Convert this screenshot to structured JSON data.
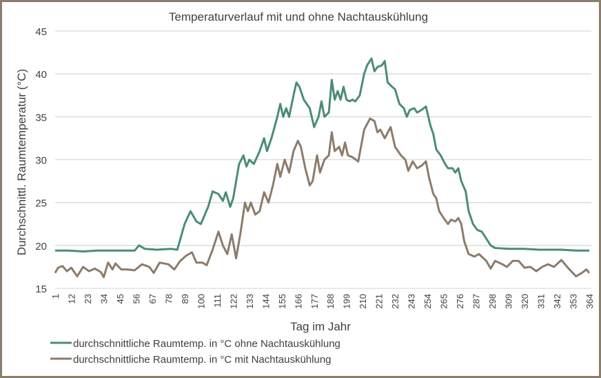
{
  "chart_data": {
    "type": "line",
    "title": "Temperaturverlauf mit und ohne Nachtauskühlung",
    "xlabel": "Tag im Jahr",
    "ylabel": "Durchschnittl. Raumtemperatur (°C)",
    "ylim": [
      15,
      45
    ],
    "yticks": [
      15,
      20,
      25,
      30,
      35,
      40,
      45
    ],
    "xlim": [
      1,
      364
    ],
    "xticks": [
      1,
      12,
      23,
      34,
      45,
      56,
      67,
      78,
      89,
      100,
      111,
      122,
      133,
      144,
      155,
      166,
      177,
      188,
      199,
      210,
      221,
      232,
      243,
      254,
      265,
      276,
      287,
      298,
      309,
      320,
      331,
      342,
      353,
      364
    ],
    "grid": true,
    "legend_position": "bottom-left",
    "series": [
      {
        "name": "durchschnittliche Raumtemp. in °C ohne Nachtauskühlung",
        "color": "#4a8c78",
        "points": [
          [
            1,
            19.4
          ],
          [
            10,
            19.4
          ],
          [
            20,
            19.3
          ],
          [
            30,
            19.4
          ],
          [
            40,
            19.4
          ],
          [
            55,
            19.4
          ],
          [
            58,
            20.0
          ],
          [
            62,
            19.6
          ],
          [
            70,
            19.5
          ],
          [
            80,
            19.6
          ],
          [
            84,
            19.5
          ],
          [
            89,
            22.5
          ],
          [
            93,
            24.0
          ],
          [
            97,
            22.8
          ],
          [
            100,
            22.5
          ],
          [
            105,
            24.5
          ],
          [
            108,
            26.3
          ],
          [
            112,
            26.0
          ],
          [
            115,
            25.2
          ],
          [
            117,
            26.2
          ],
          [
            120,
            24.5
          ],
          [
            122,
            25.5
          ],
          [
            126,
            29.5
          ],
          [
            129,
            30.5
          ],
          [
            131,
            29.2
          ],
          [
            133,
            30.0
          ],
          [
            136,
            29.5
          ],
          [
            140,
            31.0
          ],
          [
            143,
            32.5
          ],
          [
            145,
            31.0
          ],
          [
            148,
            32.5
          ],
          [
            152,
            35.0
          ],
          [
            154,
            36.5
          ],
          [
            156,
            35.0
          ],
          [
            158,
            36.0
          ],
          [
            160,
            35.0
          ],
          [
            163,
            37.5
          ],
          [
            165,
            39.0
          ],
          [
            167,
            38.5
          ],
          [
            170,
            37.0
          ],
          [
            174,
            36.0
          ],
          [
            177,
            33.8
          ],
          [
            180,
            35.0
          ],
          [
            182,
            36.8
          ],
          [
            184,
            35.0
          ],
          [
            187,
            35.5
          ],
          [
            189,
            39.3
          ],
          [
            191,
            37.0
          ],
          [
            193,
            38.0
          ],
          [
            195,
            37.0
          ],
          [
            197,
            38.5
          ],
          [
            199,
            37.0
          ],
          [
            201,
            36.8
          ],
          [
            203,
            37.0
          ],
          [
            205,
            36.8
          ],
          [
            208,
            37.5
          ],
          [
            211,
            40.0
          ],
          [
            213,
            41.0
          ],
          [
            216,
            41.8
          ],
          [
            218,
            40.3
          ],
          [
            220,
            40.8
          ],
          [
            223,
            41.0
          ],
          [
            225,
            41.5
          ],
          [
            227,
            39.0
          ],
          [
            230,
            38.5
          ],
          [
            232,
            38.2
          ],
          [
            235,
            36.5
          ],
          [
            238,
            36.0
          ],
          [
            240,
            35.0
          ],
          [
            242,
            35.8
          ],
          [
            245,
            36.0
          ],
          [
            247,
            35.5
          ],
          [
            250,
            35.8
          ],
          [
            253,
            36.2
          ],
          [
            256,
            34.0
          ],
          [
            258,
            33.0
          ],
          [
            260,
            31.2
          ],
          [
            263,
            30.5
          ],
          [
            266,
            29.5
          ],
          [
            268,
            29.0
          ],
          [
            271,
            29.0
          ],
          [
            273,
            28.5
          ],
          [
            275,
            29.0
          ],
          [
            277,
            27.5
          ],
          [
            280,
            26.3
          ],
          [
            282,
            24.0
          ],
          [
            285,
            22.5
          ],
          [
            288,
            21.8
          ],
          [
            291,
            21.6
          ],
          [
            294,
            20.8
          ],
          [
            297,
            20.0
          ],
          [
            300,
            19.7
          ],
          [
            310,
            19.6
          ],
          [
            320,
            19.6
          ],
          [
            330,
            19.5
          ],
          [
            345,
            19.5
          ],
          [
            355,
            19.4
          ],
          [
            364,
            19.4
          ]
        ]
      },
      {
        "name": "durchschnittliche Raumtemp. in °C mit Nachtauskühlung",
        "color": "#8c7b6b",
        "points": [
          [
            1,
            16.8
          ],
          [
            3,
            17.4
          ],
          [
            6,
            17.6
          ],
          [
            9,
            17.0
          ],
          [
            12,
            17.4
          ],
          [
            16,
            16.4
          ],
          [
            20,
            17.5
          ],
          [
            24,
            17.0
          ],
          [
            28,
            17.3
          ],
          [
            32,
            16.9
          ],
          [
            34,
            16.3
          ],
          [
            37,
            18.0
          ],
          [
            40,
            17.2
          ],
          [
            42,
            17.9
          ],
          [
            46,
            17.2
          ],
          [
            50,
            17.2
          ],
          [
            55,
            17.1
          ],
          [
            60,
            17.8
          ],
          [
            65,
            17.5
          ],
          [
            68,
            16.8
          ],
          [
            72,
            18.0
          ],
          [
            78,
            17.8
          ],
          [
            82,
            17.2
          ],
          [
            86,
            18.2
          ],
          [
            90,
            18.8
          ],
          [
            94,
            19.2
          ],
          [
            97,
            18.0
          ],
          [
            101,
            18.0
          ],
          [
            104,
            17.7
          ],
          [
            108,
            19.5
          ],
          [
            112,
            21.6
          ],
          [
            115,
            20.0
          ],
          [
            118,
            19.0
          ],
          [
            121,
            21.3
          ],
          [
            124,
            18.5
          ],
          [
            127,
            21.5
          ],
          [
            130,
            25.0
          ],
          [
            132,
            24.0
          ],
          [
            134,
            25.0
          ],
          [
            137,
            23.6
          ],
          [
            140,
            24.0
          ],
          [
            143,
            26.2
          ],
          [
            146,
            25.0
          ],
          [
            149,
            27.0
          ],
          [
            152,
            29.5
          ],
          [
            154,
            28.0
          ],
          [
            157,
            30.0
          ],
          [
            160,
            28.5
          ],
          [
            163,
            31.0
          ],
          [
            166,
            32.2
          ],
          [
            168,
            31.5
          ],
          [
            171,
            29.0
          ],
          [
            174,
            27.0
          ],
          [
            176,
            27.5
          ],
          [
            179,
            30.5
          ],
          [
            181,
            28.5
          ],
          [
            184,
            30.0
          ],
          [
            187,
            30.5
          ],
          [
            189,
            33.2
          ],
          [
            191,
            31.0
          ],
          [
            194,
            31.5
          ],
          [
            196,
            30.5
          ],
          [
            198,
            32.0
          ],
          [
            200,
            30.5
          ],
          [
            203,
            30.3
          ],
          [
            207,
            29.8
          ],
          [
            211,
            33.5
          ],
          [
            215,
            34.8
          ],
          [
            218,
            34.5
          ],
          [
            220,
            33.2
          ],
          [
            222,
            33.5
          ],
          [
            225,
            32.5
          ],
          [
            229,
            33.8
          ],
          [
            232,
            31.5
          ],
          [
            236,
            30.5
          ],
          [
            239,
            30.0
          ],
          [
            241,
            28.7
          ],
          [
            244,
            29.8
          ],
          [
            247,
            29.0
          ],
          [
            250,
            29.3
          ],
          [
            253,
            29.8
          ],
          [
            255,
            28.0
          ],
          [
            258,
            26.0
          ],
          [
            260,
            25.5
          ],
          [
            262,
            24.0
          ],
          [
            265,
            23.2
          ],
          [
            268,
            22.5
          ],
          [
            270,
            23.0
          ],
          [
            273,
            22.8
          ],
          [
            275,
            23.2
          ],
          [
            277,
            22.5
          ],
          [
            279,
            20.5
          ],
          [
            282,
            19.0
          ],
          [
            286,
            18.7
          ],
          [
            289,
            19.0
          ],
          [
            294,
            18.2
          ],
          [
            297,
            17.3
          ],
          [
            300,
            18.2
          ],
          [
            305,
            17.8
          ],
          [
            308,
            17.5
          ],
          [
            312,
            18.2
          ],
          [
            316,
            18.2
          ],
          [
            320,
            17.4
          ],
          [
            324,
            17.5
          ],
          [
            328,
            17.0
          ],
          [
            332,
            17.5
          ],
          [
            336,
            17.8
          ],
          [
            340,
            17.5
          ],
          [
            345,
            18.3
          ],
          [
            350,
            17.3
          ],
          [
            355,
            16.4
          ],
          [
            359,
            16.8
          ],
          [
            362,
            17.2
          ],
          [
            364,
            16.8
          ]
        ]
      }
    ]
  }
}
